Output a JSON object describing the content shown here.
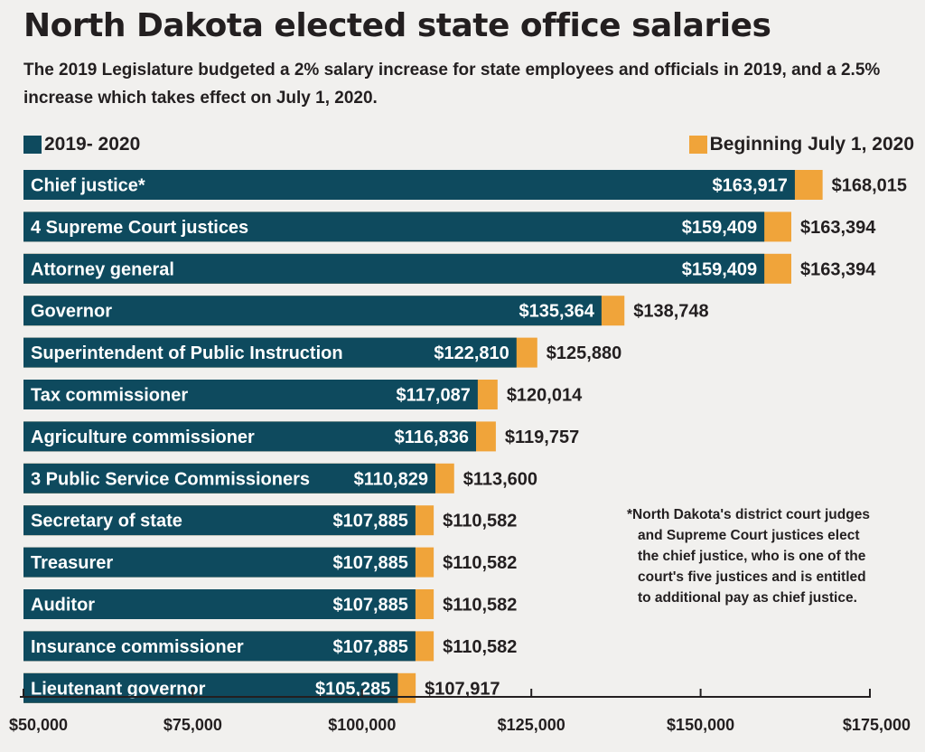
{
  "title": "North Dakota elected state office salaries",
  "subtitle": "The 2019 Legislature budgeted a 2% salary increase for state employees and officials in 2019, and a 2.5% increase which takes effect on July 1, 2020.",
  "footnote_lines": [
    "*North Dakota's district court judges",
    "and Supreme Court justices elect",
    "the chief justice, who is one of the",
    "court's five justices and is entitled",
    "to additional pay as chief justice."
  ],
  "colors": {
    "series_2019": "#0e4a5e",
    "series_2020": "#f0a43a",
    "axis": "#231f20"
  },
  "chart_data": {
    "type": "bar",
    "orientation": "horizontal",
    "stacked": "overlay",
    "title": "North Dakota elected state office salaries",
    "xlabel": "",
    "ylabel": "",
    "xlim": [
      50000,
      175000
    ],
    "ticks": [
      50000,
      75000,
      100000,
      125000,
      150000,
      175000
    ],
    "tick_labels": [
      "$50,000",
      "$75,000",
      "$100,000",
      "$125,000",
      "$150,000",
      "$175,000"
    ],
    "grid": false,
    "legend_position": "top",
    "categories": [
      "Chief  justice*",
      "4 Supreme Court justices",
      "Attorney general",
      "Governor",
      "Superintendent of Public Instruction",
      "Tax commissioner",
      "Agriculture commissioner",
      "3 Public Service Commissioners",
      "Secretary of state",
      "Treasurer",
      "Auditor",
      "Insurance commissioner",
      "Lieutenant governor"
    ],
    "series": [
      {
        "name": "2019- 2020",
        "values": [
          163917,
          159409,
          159409,
          135364,
          122810,
          117087,
          116836,
          110829,
          107885,
          107885,
          107885,
          107885,
          105285
        ],
        "labels": [
          "$163,917",
          "$159,409",
          "$159,409",
          "$135,364",
          "$122,810",
          "$117,087",
          "$116,836",
          "$110,829",
          "$107,885",
          "$107,885",
          "$107,885",
          "$107,885",
          "$105,285"
        ]
      },
      {
        "name": "Beginning July 1, 2020",
        "values": [
          168015,
          163394,
          163394,
          138748,
          125880,
          120014,
          119757,
          113600,
          110582,
          110582,
          110582,
          110582,
          107917
        ],
        "labels": [
          "$168,015",
          "$163,394",
          "$163,394",
          "$138,748",
          "$125,880",
          "$120,014",
          "$119,757",
          "$113,600",
          "$110,582",
          "$110,582",
          "$110,582",
          "$110,582",
          "$107,917"
        ]
      }
    ]
  }
}
